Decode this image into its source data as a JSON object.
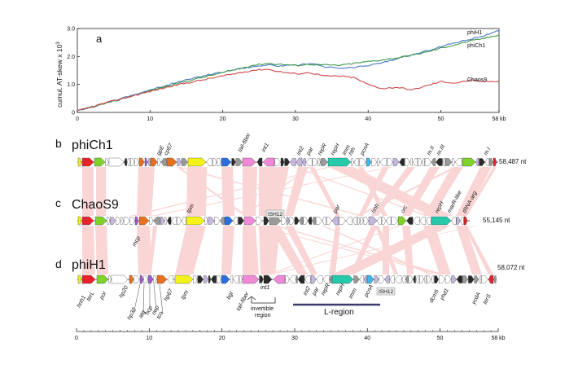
{
  "panels": {
    "a": "a",
    "b": "b",
    "c": "c",
    "d": "d"
  },
  "chart_data": {
    "type": "line",
    "ylabel": "cumul. AT-skew  x 10",
    "ylabel_exp": "3",
    "xlim": [
      0,
      58
    ],
    "ylim": [
      0,
      3.0
    ],
    "y_ticks": [
      0,
      1.0,
      2.0,
      3.0
    ],
    "y_tick_labels": [
      "0",
      "1.0",
      "2.0",
      "3.0"
    ],
    "x_ticks": [
      0,
      10,
      20,
      30,
      40,
      50,
      58
    ],
    "x_tick_labels": [
      "0",
      "10",
      "20",
      "30",
      "40",
      "50",
      "58 kb"
    ],
    "series": [
      {
        "name": "phiH1",
        "color": "#4a78c8",
        "x": [
          0,
          2,
          4,
          6,
          8,
          10,
          12,
          14,
          16,
          18,
          20,
          22,
          24,
          26,
          28,
          30,
          32,
          34,
          36,
          38,
          40,
          42,
          44,
          46,
          48,
          50,
          52,
          54,
          56,
          58
        ],
        "y": [
          0.05,
          0.2,
          0.35,
          0.5,
          0.65,
          0.8,
          0.95,
          1.1,
          1.22,
          1.35,
          1.45,
          1.55,
          1.63,
          1.7,
          1.66,
          1.68,
          1.75,
          1.62,
          1.58,
          1.6,
          1.68,
          1.78,
          1.92,
          2.05,
          2.2,
          2.35,
          2.5,
          2.62,
          2.75,
          2.92
        ]
      },
      {
        "name": "phiCh1",
        "color": "#3f9a4a",
        "x": [
          0,
          2,
          4,
          6,
          8,
          10,
          12,
          14,
          16,
          18,
          20,
          22,
          24,
          26,
          28,
          30,
          32,
          34,
          36,
          38,
          40,
          42,
          44,
          46,
          48,
          50,
          52,
          54,
          56,
          58
        ],
        "y": [
          0.05,
          0.18,
          0.33,
          0.47,
          0.62,
          0.78,
          0.92,
          1.05,
          1.18,
          1.3,
          1.42,
          1.55,
          1.68,
          1.75,
          1.72,
          1.68,
          1.72,
          1.7,
          1.68,
          1.75,
          1.82,
          1.88,
          1.95,
          2.05,
          2.15,
          2.3,
          2.42,
          2.55,
          2.65,
          2.78
        ]
      },
      {
        "name": "Chaos9",
        "color": "#d0464a",
        "x": [
          0,
          2,
          4,
          6,
          8,
          10,
          12,
          14,
          16,
          18,
          20,
          22,
          24,
          26,
          28,
          30,
          32,
          34,
          36,
          38,
          40,
          42,
          44,
          46,
          48,
          50,
          52,
          54,
          56,
          58
        ],
        "y": [
          0.05,
          0.2,
          0.35,
          0.48,
          0.62,
          0.75,
          0.88,
          1.0,
          1.1,
          1.2,
          1.3,
          1.4,
          1.5,
          1.55,
          1.45,
          1.38,
          1.42,
          1.3,
          1.3,
          1.25,
          1.0,
          0.85,
          0.9,
          0.8,
          0.95,
          1.1,
          1.05,
          1.15,
          1.1,
          1.12
        ]
      }
    ]
  },
  "genomes": [
    {
      "label": "phiCh1",
      "length": "58,487 nt",
      "annotations": [
        "gpE",
        "cp67",
        "tail-fiber",
        "int1",
        "int2",
        "par",
        "repR",
        "repH",
        "imm",
        "hth",
        "pcnA",
        "m.II",
        "m.III",
        "m.I"
      ]
    },
    {
      "label": "ChaoS9",
      "length": "55,145 nt",
      "annotations": [
        "tpm",
        "ISH12",
        "par",
        "hnh",
        "orc",
        "repH",
        "marR-like",
        "tRNA-arg",
        "mcp"
      ]
    },
    {
      "label": "phiH1",
      "length": "58,072 nt",
      "annotations": [
        "hnh1",
        "terL",
        "por",
        "hp20",
        "hp32",
        "atg",
        "hcp",
        "nep",
        "tco",
        "hp67",
        "tpm",
        "bgl",
        "tail-fiber",
        "int1",
        "int2",
        "par",
        "repR",
        "repH",
        "imm",
        "pcnA",
        "ISH12",
        "dcm5",
        "yhd1",
        "ycdA",
        "terS"
      ],
      "extras": {
        "invertible": [
          "invertible",
          "region"
        ],
        "l_region": "L-region"
      }
    }
  ],
  "kb_axis": {
    "ticks": [
      "0",
      "10",
      "20",
      "30",
      "40",
      "50",
      "58 kb"
    ]
  },
  "gene_colors": {
    "red": "#e8222a",
    "green": "#7fd12b",
    "yellow": "#f4f21a",
    "orange": "#e8701e",
    "purple": "#9d5ccf",
    "blue": "#2a6fe0",
    "pink": "#f08ad8",
    "teal": "#26c9a9",
    "lightblue": "#3fb6e8",
    "dark": "#2a2a2a",
    "lavender": "#c6b7e0",
    "gray": "#9a9a9a",
    "white": "#ffffff"
  }
}
